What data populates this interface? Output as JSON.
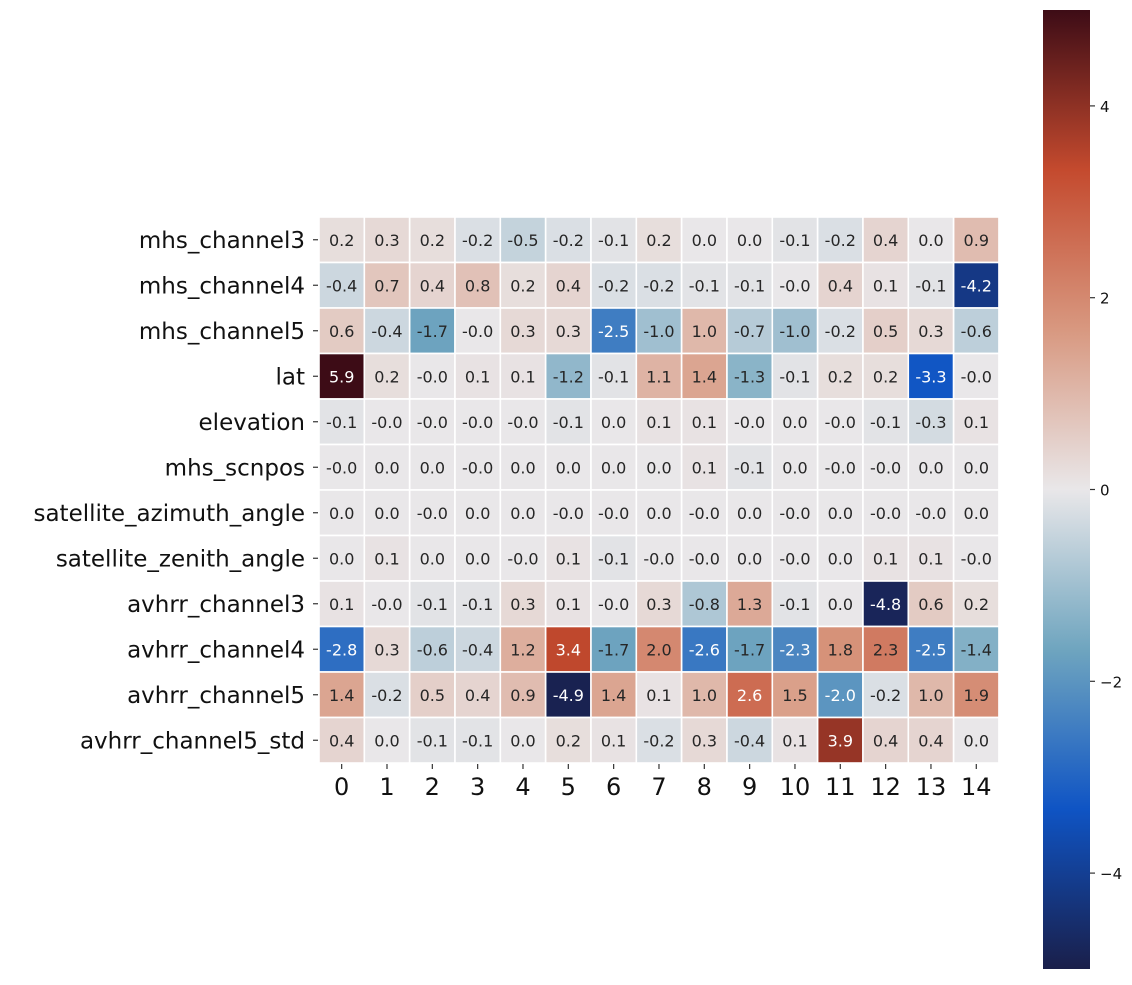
{
  "chart_data": {
    "type": "heatmap",
    "title": "",
    "xlabel": "",
    "ylabel": "",
    "x_categories": [
      "0",
      "1",
      "2",
      "3",
      "4",
      "5",
      "6",
      "7",
      "8",
      "9",
      "10",
      "11",
      "12",
      "13",
      "14"
    ],
    "y_categories": [
      "mhs_channel3",
      "mhs_channel4",
      "mhs_channel5",
      "lat",
      "elevation",
      "mhs_scnpos",
      "satellite_azimuth_angle",
      "satellite_zenith_angle",
      "avhrr_channel3",
      "avhrr_channel4",
      "avhrr_channel5",
      "avhrr_channel5_std"
    ],
    "values": [
      [
        0.2,
        0.3,
        0.2,
        -0.2,
        -0.5,
        -0.2,
        -0.1,
        0.2,
        0.0,
        0.0,
        -0.1,
        -0.2,
        0.4,
        0.0,
        0.9
      ],
      [
        -0.4,
        0.7,
        0.4,
        0.8,
        0.2,
        0.4,
        -0.2,
        -0.2,
        -0.1,
        -0.1,
        -0.0,
        0.4,
        0.1,
        -0.1,
        -4.2
      ],
      [
        0.6,
        -0.4,
        -1.7,
        -0.0,
        0.3,
        0.3,
        -2.5,
        -1.0,
        1.0,
        -0.7,
        -1.0,
        -0.2,
        0.5,
        0.3,
        -0.6
      ],
      [
        5.9,
        0.2,
        -0.0,
        0.1,
        0.1,
        -1.2,
        -0.1,
        1.1,
        1.4,
        -1.3,
        -0.1,
        0.2,
        0.2,
        -3.3,
        -0.0
      ],
      [
        -0.1,
        -0.0,
        -0.0,
        -0.0,
        -0.0,
        -0.1,
        0.0,
        0.1,
        0.1,
        -0.0,
        0.0,
        -0.0,
        -0.1,
        -0.3,
        0.1
      ],
      [
        -0.0,
        0.0,
        0.0,
        -0.0,
        0.0,
        0.0,
        0.0,
        0.0,
        0.1,
        -0.1,
        0.0,
        -0.0,
        -0.0,
        0.0,
        0.0
      ],
      [
        0.0,
        0.0,
        -0.0,
        0.0,
        0.0,
        -0.0,
        -0.0,
        0.0,
        -0.0,
        0.0,
        -0.0,
        0.0,
        -0.0,
        -0.0,
        0.0
      ],
      [
        0.0,
        0.1,
        0.0,
        0.0,
        -0.0,
        0.1,
        -0.1,
        -0.0,
        -0.0,
        0.0,
        -0.0,
        0.0,
        0.1,
        0.1,
        -0.0
      ],
      [
        0.1,
        -0.0,
        -0.1,
        -0.1,
        0.3,
        0.1,
        -0.0,
        0.3,
        -0.8,
        1.3,
        -0.1,
        0.0,
        -4.8,
        0.6,
        0.2
      ],
      [
        -2.8,
        0.3,
        -0.6,
        -0.4,
        1.2,
        3.4,
        -1.7,
        2.0,
        -2.6,
        -1.7,
        -2.3,
        1.8,
        2.3,
        -2.5,
        -1.4
      ],
      [
        1.4,
        -0.2,
        0.5,
        0.4,
        0.9,
        -4.9,
        1.4,
        0.1,
        1.0,
        2.6,
        1.5,
        -2.0,
        -0.2,
        1.0,
        1.9
      ],
      [
        0.4,
        0.0,
        -0.1,
        -0.1,
        0.0,
        0.2,
        0.1,
        -0.2,
        0.3,
        -0.4,
        0.1,
        3.9,
        0.4,
        0.4,
        0.0
      ]
    ],
    "value_format": "0.1f",
    "colorbar": {
      "range": [
        -5,
        5
      ],
      "ticks": [
        4,
        2,
        0,
        -2,
        -4
      ],
      "tick_labels": [
        "4",
        "2",
        "0",
        "−2",
        "−4"
      ],
      "colormap": "diverging dark-navy / blue / light-gray / red / dark-maroon"
    },
    "colors": {
      "grid_lines": "#ffffff",
      "background": "#ffffff",
      "stops": [
        "#1a1f4a",
        "#0f54c4",
        "#6fa5bf",
        "#e9e7e9",
        "#d89880",
        "#c44a2e",
        "#3d0c16"
      ]
    }
  }
}
